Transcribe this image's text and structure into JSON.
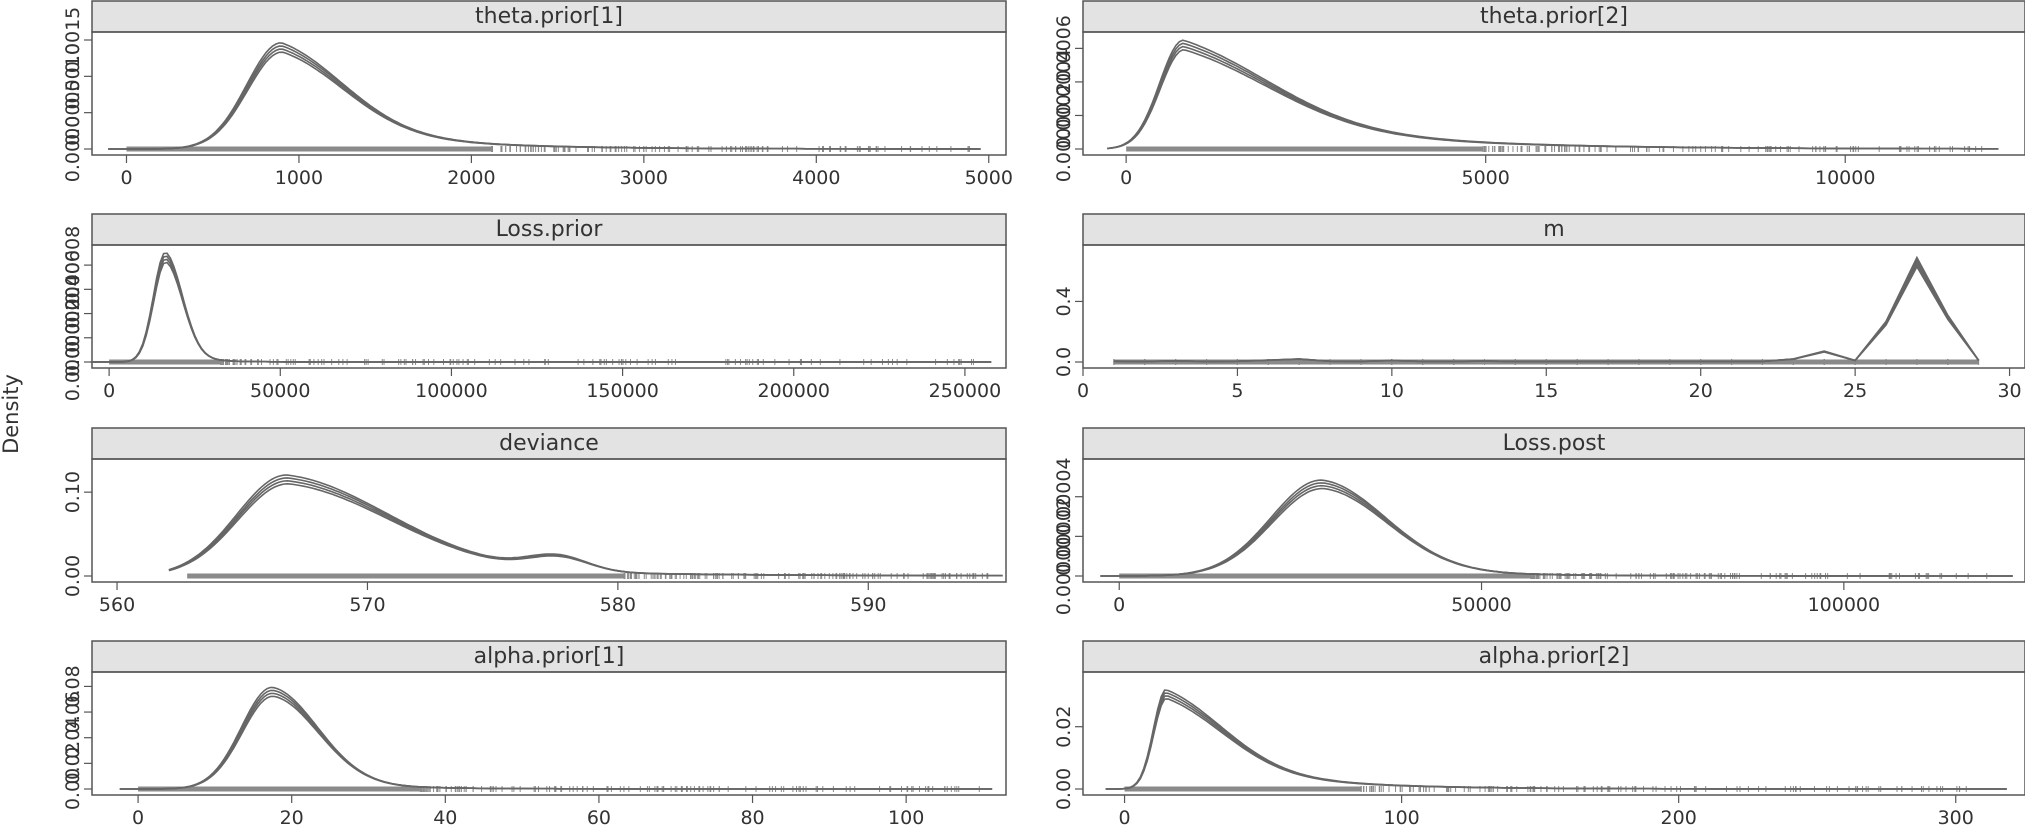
{
  "ylabel": "Density",
  "colors": {
    "strip_fill": "#e3e3e3",
    "frame": "#555555",
    "curve": "#666666",
    "rug": "#8a8a8a",
    "text": "#333333"
  },
  "chart_data": [
    {
      "type": "line",
      "title": "theta.prior[1]",
      "xlim": [
        -200,
        5100
      ],
      "ylim": [
        0,
        0.0015
      ],
      "xticks": [
        0,
        1000,
        2000,
        3000,
        4000,
        5000
      ],
      "yticks": [
        0.0,
        0.0005,
        0.001,
        0.0015
      ],
      "ytick_labels": [
        "0.0000",
        "0.0005",
        "0.0010",
        "0.0015"
      ],
      "rug_range": [
        0,
        4900
      ],
      "peak_x": 900,
      "peak_y": 0.00142,
      "sigma_left": 200,
      "sigma_right": 380,
      "right_tail": 0.35
    },
    {
      "type": "line",
      "title": "theta.prior[2]",
      "xlim": [
        -600,
        12500
      ],
      "ylim": [
        0,
        0.00065
      ],
      "xticks": [
        0,
        5000,
        10000
      ],
      "yticks": [
        0.0,
        0.0002,
        0.0004,
        0.0006
      ],
      "ytick_labels": [
        "0.0000",
        "0.0002",
        "0.0004",
        "0.0006"
      ],
      "rug_range": [
        0,
        12000
      ],
      "peak_x": 800,
      "peak_y": 0.00063,
      "sigma_left": 330,
      "sigma_right": 1300,
      "right_tail": 0.45
    },
    {
      "type": "line",
      "title": "Loss.prior",
      "xlim": [
        -5000,
        262000
      ],
      "ylim": [
        0,
        9e-05
      ],
      "xticks": [
        0,
        50000,
        100000,
        150000,
        200000,
        250000
      ],
      "yticks": [
        0.0,
        2e-05,
        4e-05,
        6e-05,
        8e-05
      ],
      "ytick_labels": [
        "0.00000",
        "0.00002",
        "0.00004",
        "0.00006",
        "0.00008"
      ],
      "rug_range": [
        0,
        255000
      ],
      "peak_x": 16500,
      "peak_y": 8.8e-05,
      "sigma_left": 3500,
      "sigma_right": 5000,
      "right_tail": 0.1
    },
    {
      "type": "line",
      "title": "m",
      "xlim": [
        0,
        30.5
      ],
      "ylim": [
        0,
        0.72
      ],
      "xticks": [
        0,
        5,
        10,
        15,
        20,
        25,
        30
      ],
      "yticks": [
        0.0,
        0.4
      ],
      "ytick_labels": [
        "0.0",
        "0.4"
      ],
      "discrete": true,
      "pmf": [
        [
          1,
          0.005
        ],
        [
          2,
          0.003
        ],
        [
          3,
          0.008
        ],
        [
          4,
          0.003
        ],
        [
          5,
          0.005
        ],
        [
          6,
          0.012
        ],
        [
          7,
          0.02
        ],
        [
          8,
          0.005
        ],
        [
          9,
          0.004
        ],
        [
          10,
          0.01
        ],
        [
          11,
          0.004
        ],
        [
          12,
          0.004
        ],
        [
          13,
          0.006
        ],
        [
          14,
          0.003
        ],
        [
          15,
          0.004
        ],
        [
          16,
          0.003
        ],
        [
          17,
          0.004
        ],
        [
          18,
          0.003
        ],
        [
          19,
          0.004
        ],
        [
          20,
          0.004
        ],
        [
          21,
          0.004
        ],
        [
          22,
          0.004
        ],
        [
          23,
          0.02
        ],
        [
          24,
          0.07
        ],
        [
          25,
          0.01
        ],
        [
          26,
          0.26
        ],
        [
          27,
          0.67
        ],
        [
          28,
          0.3
        ],
        [
          29,
          0.01
        ]
      ],
      "rug_range": [
        1,
        29
      ]
    },
    {
      "type": "line",
      "title": "deviance",
      "xlim": [
        559,
        595.5
      ],
      "ylim": [
        0,
        0.13
      ],
      "xticks": [
        560,
        570,
        580,
        590
      ],
      "yticks": [
        0.0,
        0.1
      ],
      "ytick_labels": [
        "0.00",
        "0.10"
      ],
      "rug_range": [
        562.8,
        595
      ],
      "peak_x": 566.8,
      "peak_y": 0.117,
      "sigma_left": 2.0,
      "sigma_right": 4.2,
      "right_tail": 0.2,
      "bump_x": 577.6,
      "bump_y": 0.017
    },
    {
      "type": "line",
      "title": "Loss.post",
      "xlim": [
        -5000,
        125000
      ],
      "ylim": [
        0,
        5.5e-05
      ],
      "xticks": [
        0,
        50000,
        100000
      ],
      "yticks": [
        0.0,
        2e-05,
        4e-05
      ],
      "ytick_labels": [
        "0.00000",
        "0.00002",
        "0.00004"
      ],
      "rug_range": [
        0,
        122000
      ],
      "peak_x": 28000,
      "peak_y": 4.7e-05,
      "sigma_left": 7000,
      "sigma_right": 9000,
      "right_tail": 0.12
    },
    {
      "type": "line",
      "title": "alpha.prior[1]",
      "xlim": [
        -6,
        113
      ],
      "ylim": [
        0,
        0.085
      ],
      "xticks": [
        0,
        20,
        40,
        60,
        80,
        100
      ],
      "yticks": [
        0.0,
        0.02,
        0.04,
        0.06,
        0.08
      ],
      "ytick_labels": [
        "0.00",
        "0.02",
        "0.04",
        "0.06",
        "0.08"
      ],
      "rug_range": [
        0,
        110
      ],
      "peak_x": 17.5,
      "peak_y": 0.077,
      "sigma_left": 4.0,
      "sigma_right": 6.0,
      "right_tail": 0.12
    },
    {
      "type": "line",
      "title": "alpha.prior[2]",
      "xlim": [
        -15,
        325
      ],
      "ylim": [
        0,
        0.035
      ],
      "xticks": [
        0,
        100,
        200,
        300
      ],
      "yticks": [
        0.0,
        0.02
      ],
      "ytick_labels": [
        "0.00",
        "0.02"
      ],
      "rug_range": [
        0,
        315
      ],
      "peak_x": 15,
      "peak_y": 0.031,
      "sigma_left": 4.5,
      "sigma_right": 22,
      "right_tail": 0.4
    }
  ]
}
